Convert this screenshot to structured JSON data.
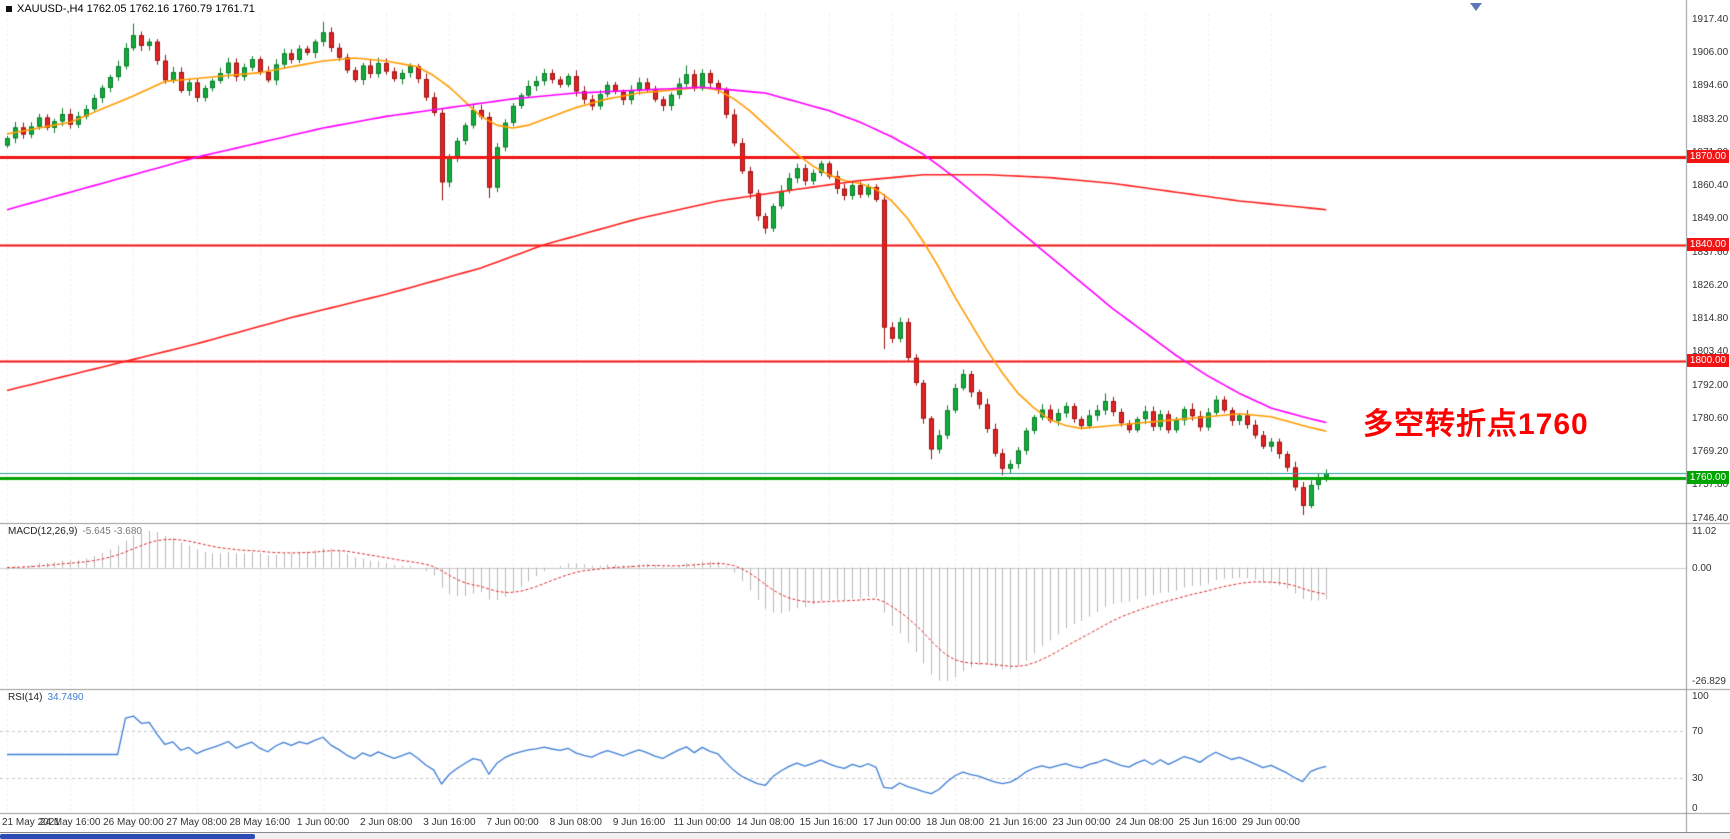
{
  "window": {
    "title": "XAUUSD-,H4 1762.05 1762.16 1760.79 1761.71",
    "symbol": "XAUUSD-",
    "timeframe": "H4",
    "ohlc": {
      "open": "1762.05",
      "high": "1762.16",
      "low": "1760.79",
      "close": "1761.71"
    }
  },
  "annotation": {
    "text": "多空转折点1760",
    "color": "#ff0000"
  },
  "indicators": {
    "macd": {
      "label": "MACD(12,26,9)",
      "values": "-5.645 -3.680",
      "params": [
        12,
        26,
        9
      ],
      "axis": [
        "11.02",
        "0.00",
        "-26.829"
      ]
    },
    "rsi": {
      "label": "RSI(14)",
      "value": "34.7490",
      "period": 14,
      "levels": [
        70,
        30
      ],
      "axis": [
        "100",
        "70",
        "30",
        "0"
      ]
    }
  },
  "colors": {
    "background": "#ffffff",
    "bull": "#14ab3c",
    "bull_border": "#0a7d2b",
    "bear": "#e32222",
    "bear_border": "#991414",
    "grid": "#ebebeb",
    "separator": "#999999",
    "hline_red": "#f01414",
    "hline_green": "#00a400",
    "current_price_line": "#2aa198",
    "macd_hist": "#b9b9b9",
    "macd_signal": "#e03030",
    "macd_zero": "#cccccc",
    "rsi_line": "#3f7fd6",
    "rsi_level": "#c9c9c9",
    "tag_red": "#ee1c1c",
    "tag_green": "#00a400",
    "scroll_thumb": "#2b4db3"
  },
  "chart_data": {
    "type": "candlestick",
    "symbol": "XAUUSD-",
    "timeframe": "H4",
    "title": "XAUUSD-,H4 1762.05 1762.16 1760.79 1761.71",
    "ylim": [
      1746.4,
      1917.4
    ],
    "price_axis_labels": [
      "1917.40",
      "1906.00",
      "1894.60",
      "1883.20",
      "1871.80",
      "1860.40",
      "1849.00",
      "1837.60",
      "1826.20",
      "1814.80",
      "1803.40",
      "1792.00",
      "1780.60",
      "1769.20",
      "1757.80",
      "1746.40"
    ],
    "time_labels": [
      "21 May 2021",
      "24 May 16:00",
      "26 May 00:00",
      "27 May 08:00",
      "28 May 16:00",
      "1 Jun 00:00",
      "2 Jun 08:00",
      "3 Jun 16:00",
      "7 Jun 00:00",
      "8 Jun 08:00",
      "9 Jun 16:00",
      "11 Jun 00:00",
      "14 Jun 08:00",
      "15 Jun 16:00",
      "17 Jun 00:00",
      "18 Jun 08:00",
      "21 Jun 16:00",
      "23 Jun 00:00",
      "24 Jun 08:00",
      "25 Jun 16:00",
      "29 Jun 00:00"
    ],
    "x_label_every": 8,
    "first_open": 1874.0,
    "closes": [
      1876.5,
      1880.2,
      1877.8,
      1880.5,
      1883.6,
      1880.1,
      1882.3,
      1884.8,
      1881.2,
      1884.0,
      1886.5,
      1890.3,
      1893.8,
      1897.5,
      1901.2,
      1907.4,
      1911.8,
      1908.2,
      1909.6,
      1903.1,
      1896.4,
      1899.2,
      1892.8,
      1895.6,
      1890.4,
      1893.7,
      1896.2,
      1898.8,
      1902.4,
      1897.6,
      1900.8,
      1903.6,
      1899.2,
      1896.4,
      1901.8,
      1905.6,
      1903.4,
      1907.2,
      1905.8,
      1909.6,
      1912.8,
      1907.5,
      1904.2,
      1899.8,
      1896.5,
      1901.4,
      1898.6,
      1902.3,
      1899.4,
      1896.8,
      1898.9,
      1901.2,
      1896.8,
      1890.5,
      1885.2,
      1861.4,
      1869.8,
      1875.6,
      1880.9,
      1886.2,
      1883.8,
      1859.6,
      1873.4,
      1881.8,
      1887.6,
      1891.2,
      1894.4,
      1896.1,
      1898.8,
      1896.6,
      1894.9,
      1897.8,
      1892.6,
      1889.8,
      1887.5,
      1891.6,
      1894.8,
      1892.4,
      1889.6,
      1892.8,
      1895.6,
      1893.2,
      1889.8,
      1887.6,
      1891.4,
      1895.2,
      1898.4,
      1893.6,
      1898.8,
      1895.4,
      1893.2,
      1884.6,
      1874.8,
      1865.2,
      1857.6,
      1849.8,
      1845.6,
      1853.2,
      1858.4,
      1862.8,
      1866.2,
      1861.8,
      1864.6,
      1867.8,
      1863.4,
      1859.2,
      1856.8,
      1860.4,
      1857.2,
      1859.8,
      1855.4,
      1811.6,
      1807.8,
      1813.4,
      1801.2,
      1792.6,
      1780.4,
      1769.8,
      1774.6,
      1783.2,
      1790.8,
      1795.6,
      1789.4,
      1785.2,
      1776.8,
      1768.4,
      1763.2,
      1764.8,
      1769.4,
      1776.2,
      1780.8,
      1783.4,
      1779.6,
      1782.2,
      1784.6,
      1780.2,
      1777.8,
      1781.4,
      1783.2,
      1786.4,
      1782.6,
      1778.8,
      1776.4,
      1780.2,
      1782.8,
      1777.6,
      1781.8,
      1776.4,
      1779.8,
      1783.6,
      1781.2,
      1777.4,
      1782.4,
      1786.8,
      1783.2,
      1779.6,
      1781.4,
      1778.2,
      1774.6,
      1770.8,
      1772.4,
      1768.2,
      1763.6,
      1756.8,
      1750.4,
      1757.6,
      1760.2,
      1761.7
    ],
    "wick_high_overrides": {
      "16": 1915.8,
      "40": 1916.4,
      "86": 1901.5,
      "121": 1797.2,
      "139": 1789.0
    },
    "wick_low_overrides": {
      "55": 1855.2,
      "61": 1856.0,
      "96": 1843.8,
      "111": 1804.2,
      "117": 1766.4,
      "126": 1760.9,
      "164": 1747.3
    },
    "hlines": [
      {
        "label": "1870.00",
        "price": 1870.0,
        "color": "#f01414",
        "width": 3
      },
      {
        "label": "1840.00",
        "price": 1840.0,
        "color": "#f01414",
        "width": 2
      },
      {
        "label": "1800.00",
        "price": 1800.0,
        "color": "#f01414",
        "width": 2
      },
      {
        "label": "1760.00",
        "price": 1760.0,
        "color": "#00a400",
        "width": 3
      }
    ],
    "current_price": 1761.71,
    "moving_averages": [
      {
        "name": "ma-fast",
        "color": "#ff9d00",
        "points": [
          [
            0,
            1878
          ],
          [
            8,
            1882
          ],
          [
            16,
            1891
          ],
          [
            20,
            1896
          ],
          [
            24,
            1897
          ],
          [
            28,
            1898
          ],
          [
            32,
            1899
          ],
          [
            36,
            1901
          ],
          [
            40,
            1903
          ],
          [
            44,
            1904
          ],
          [
            48,
            1903
          ],
          [
            52,
            1901
          ],
          [
            54,
            1898
          ],
          [
            56,
            1894
          ],
          [
            58,
            1889
          ],
          [
            60,
            1884
          ],
          [
            62,
            1881
          ],
          [
            64,
            1880
          ],
          [
            66,
            1881
          ],
          [
            68,
            1883
          ],
          [
            72,
            1887
          ],
          [
            76,
            1890
          ],
          [
            80,
            1892
          ],
          [
            84,
            1893
          ],
          [
            88,
            1894
          ],
          [
            90,
            1893
          ],
          [
            92,
            1890
          ],
          [
            94,
            1886
          ],
          [
            96,
            1881
          ],
          [
            98,
            1876
          ],
          [
            100,
            1871
          ],
          [
            102,
            1867
          ],
          [
            104,
            1864
          ],
          [
            106,
            1862
          ],
          [
            108,
            1861
          ],
          [
            110,
            1859
          ],
          [
            112,
            1855
          ],
          [
            114,
            1849
          ],
          [
            116,
            1841
          ],
          [
            118,
            1832
          ],
          [
            120,
            1822
          ],
          [
            122,
            1813
          ],
          [
            124,
            1804
          ],
          [
            126,
            1796
          ],
          [
            128,
            1789
          ],
          [
            130,
            1784
          ],
          [
            132,
            1780
          ],
          [
            134,
            1778
          ],
          [
            136,
            1777
          ],
          [
            140,
            1778
          ],
          [
            144,
            1779
          ],
          [
            148,
            1780
          ],
          [
            152,
            1781
          ],
          [
            156,
            1782
          ],
          [
            160,
            1781
          ],
          [
            164,
            1778
          ],
          [
            167,
            1776
          ]
        ]
      },
      {
        "name": "ma-mid",
        "color": "#ff00ff",
        "points": [
          [
            0,
            1852
          ],
          [
            8,
            1858
          ],
          [
            16,
            1864
          ],
          [
            24,
            1870
          ],
          [
            32,
            1875
          ],
          [
            40,
            1880
          ],
          [
            48,
            1884
          ],
          [
            56,
            1887
          ],
          [
            64,
            1890
          ],
          [
            72,
            1892
          ],
          [
            80,
            1893
          ],
          [
            88,
            1894
          ],
          [
            92,
            1893
          ],
          [
            96,
            1892
          ],
          [
            100,
            1889
          ],
          [
            104,
            1886
          ],
          [
            108,
            1882
          ],
          [
            112,
            1877
          ],
          [
            116,
            1871
          ],
          [
            120,
            1863
          ],
          [
            124,
            1854
          ],
          [
            128,
            1845
          ],
          [
            132,
            1836
          ],
          [
            136,
            1827
          ],
          [
            140,
            1818
          ],
          [
            144,
            1810
          ],
          [
            148,
            1802
          ],
          [
            152,
            1795
          ],
          [
            156,
            1789
          ],
          [
            160,
            1784
          ],
          [
            164,
            1781
          ],
          [
            167,
            1779
          ]
        ]
      },
      {
        "name": "ma-slow",
        "color": "#ff2020",
        "points": [
          [
            0,
            1790
          ],
          [
            12,
            1798
          ],
          [
            24,
            1806
          ],
          [
            36,
            1815
          ],
          [
            48,
            1823
          ],
          [
            60,
            1832
          ],
          [
            68,
            1840
          ],
          [
            80,
            1849
          ],
          [
            90,
            1855
          ],
          [
            100,
            1859
          ],
          [
            108,
            1862
          ],
          [
            116,
            1864
          ],
          [
            124,
            1864
          ],
          [
            132,
            1863
          ],
          [
            140,
            1861
          ],
          [
            148,
            1858
          ],
          [
            156,
            1855
          ],
          [
            167,
            1852
          ]
        ]
      }
    ],
    "macd_ylim": [
      -26.829,
      11.02
    ],
    "rsi_last": 34.749
  }
}
